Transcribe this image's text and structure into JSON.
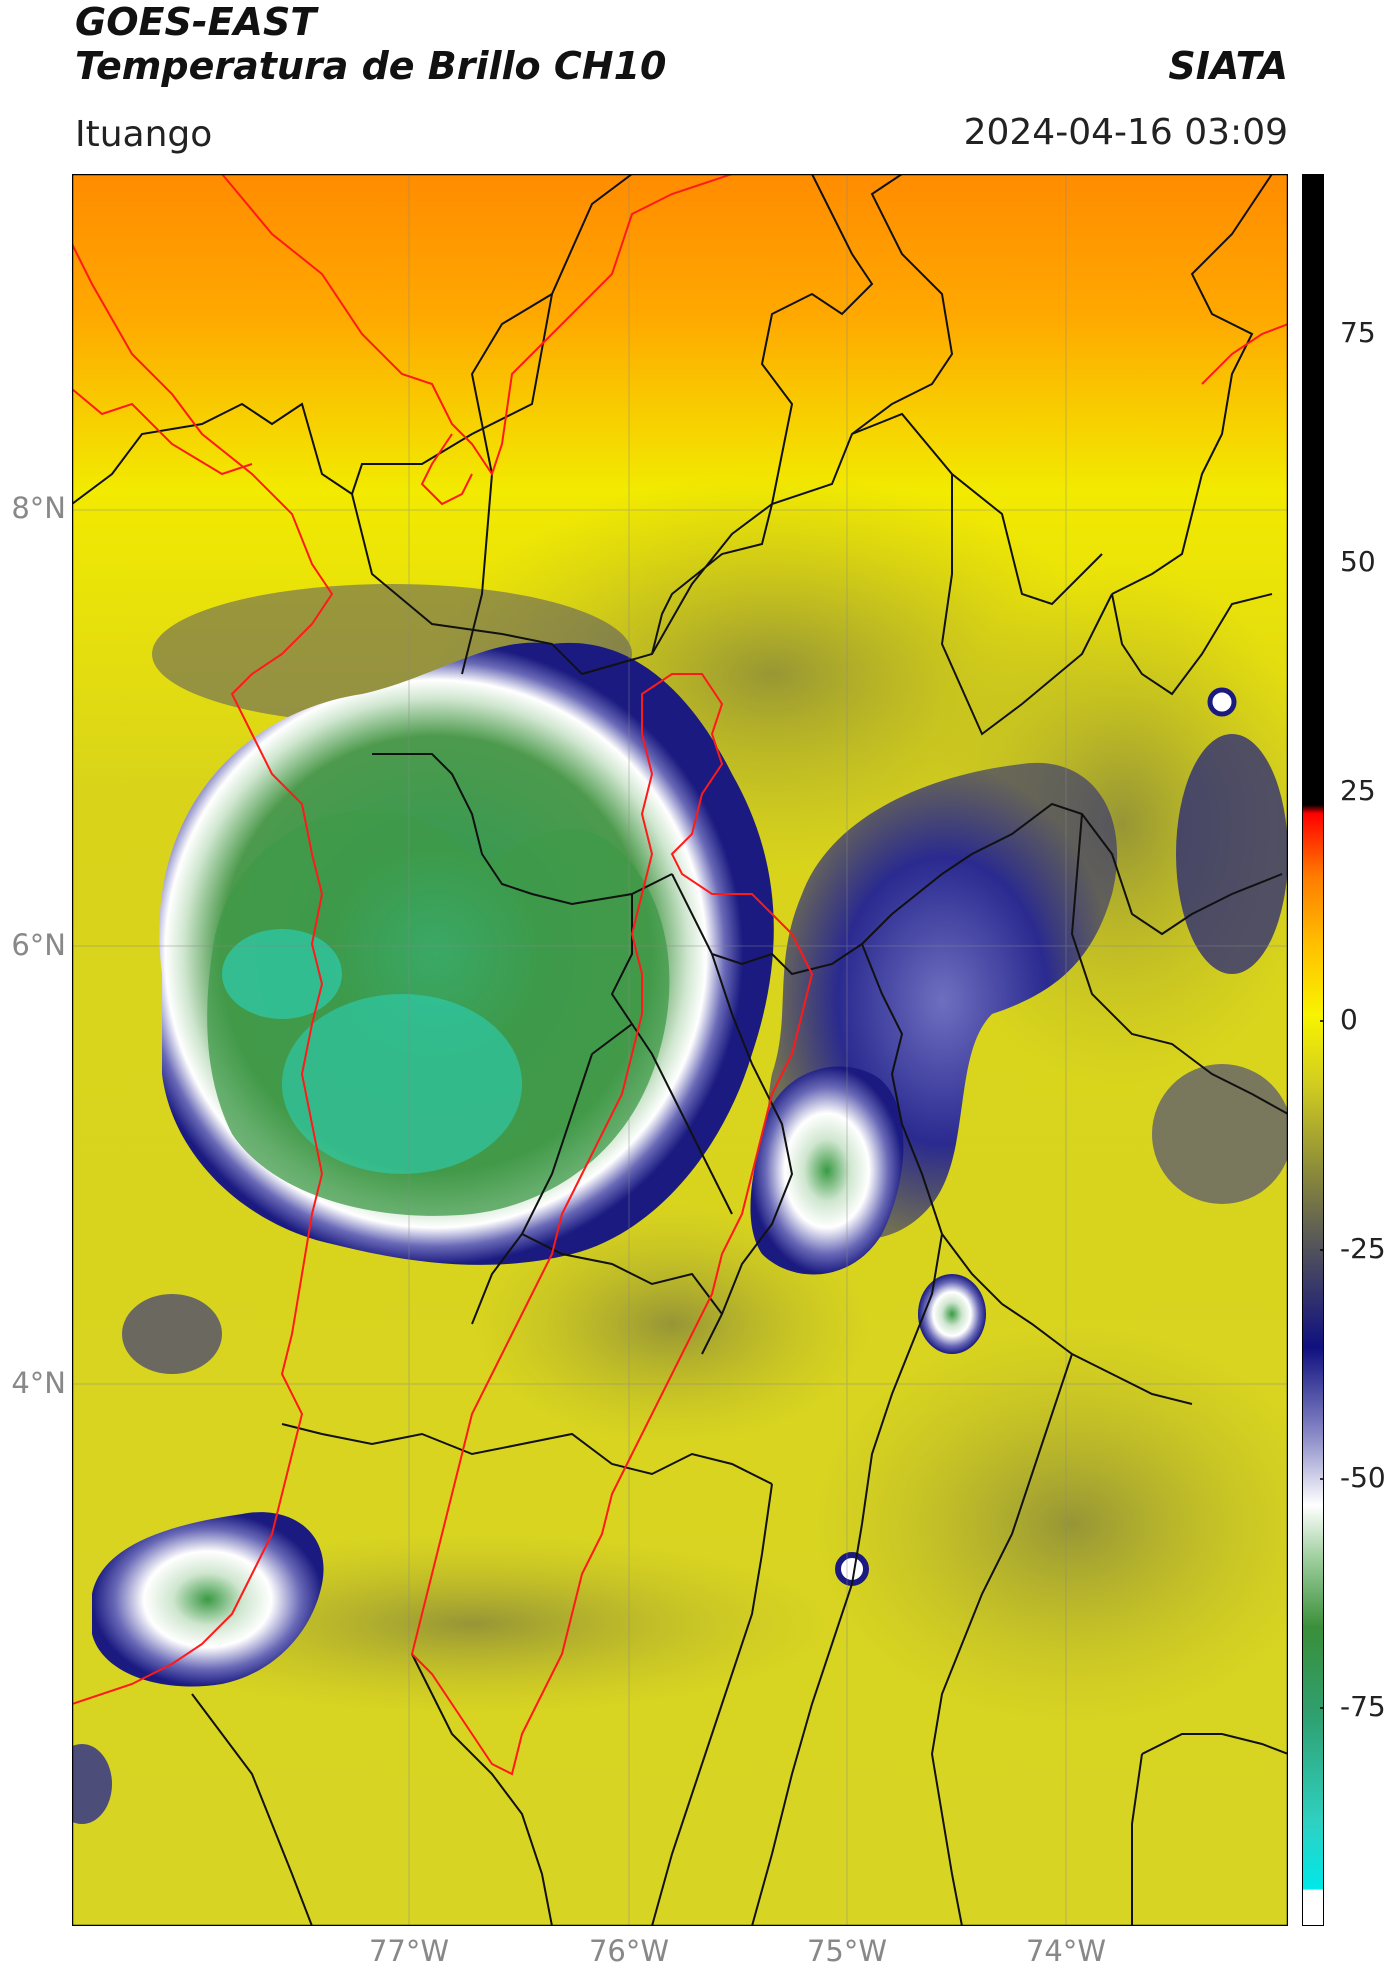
{
  "header": {
    "satellite": "GOES-EAST",
    "product": "Temperatura de Brillo CH10",
    "brand": "SIATA",
    "region": "Ituango",
    "timestamp": "2024-04-16 03:09"
  },
  "map": {
    "lat_labels": [
      "8°N",
      "6°N",
      "4°N"
    ],
    "lon_labels": [
      "77°W",
      "76°W",
      "75°W",
      "74°W"
    ],
    "colors": {
      "warm_orange": "#ff8c00",
      "yellow": "#f2ea00",
      "olive": "#b8b52a",
      "navy": "#1a1a80",
      "white_edge": "#f0f0f8",
      "green": "#3a9a44",
      "cyan": "#2ad6c0",
      "border_black": "#111111",
      "border_red": "#ff1a1a"
    }
  },
  "colorbar": {
    "ticks": [
      "75",
      "50",
      "25",
      "0",
      "-25",
      "-50",
      "-75"
    ],
    "colors": [
      "#ffffff",
      "#00e8e8",
      "#2fb38a",
      "#3a8f3a",
      "#9fcf9f",
      "#ffffff",
      "#6a6ab8",
      "#101080",
      "#6b6b3a",
      "#c8c82a",
      "#f8f400",
      "#ffb000",
      "#ff6a00",
      "#ff0000",
      "#000000"
    ]
  }
}
